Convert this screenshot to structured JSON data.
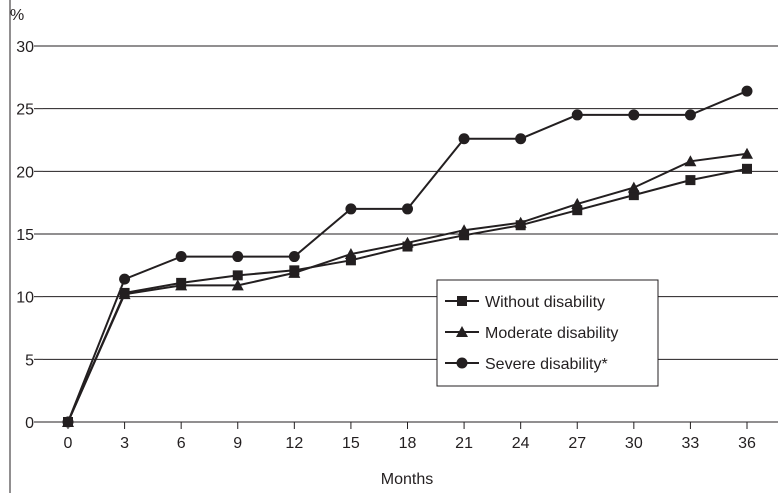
{
  "chart_data": {
    "type": "line",
    "title": "",
    "xlabel": "Months",
    "ylabel": "%",
    "x": [
      0,
      3,
      6,
      9,
      12,
      15,
      18,
      21,
      24,
      27,
      30,
      33,
      36
    ],
    "xlim": [
      0,
      36
    ],
    "ylim": [
      0,
      30
    ],
    "yticks": [
      0,
      5,
      10,
      15,
      20,
      25,
      30
    ],
    "grid": "horizontal",
    "legend_position": "lower-right",
    "colors": {
      "line": "#231f20",
      "grid": "#231f20"
    },
    "series": [
      {
        "name": "Without disability",
        "marker": "square",
        "values": [
          0,
          10.3,
          11.1,
          11.7,
          12.1,
          12.9,
          14.0,
          14.9,
          15.7,
          16.9,
          18.1,
          19.3,
          20.2
        ]
      },
      {
        "name": "Moderate disability",
        "marker": "triangle",
        "values": [
          0,
          10.2,
          10.9,
          10.9,
          11.9,
          13.4,
          14.3,
          15.3,
          15.9,
          17.4,
          18.7,
          20.8,
          21.4
        ]
      },
      {
        "name": "Severe disability*",
        "marker": "circle",
        "values": [
          0,
          11.4,
          13.2,
          13.2,
          13.2,
          17.0,
          17.0,
          22.6,
          22.6,
          24.5,
          24.5,
          24.5,
          26.4
        ]
      }
    ]
  }
}
